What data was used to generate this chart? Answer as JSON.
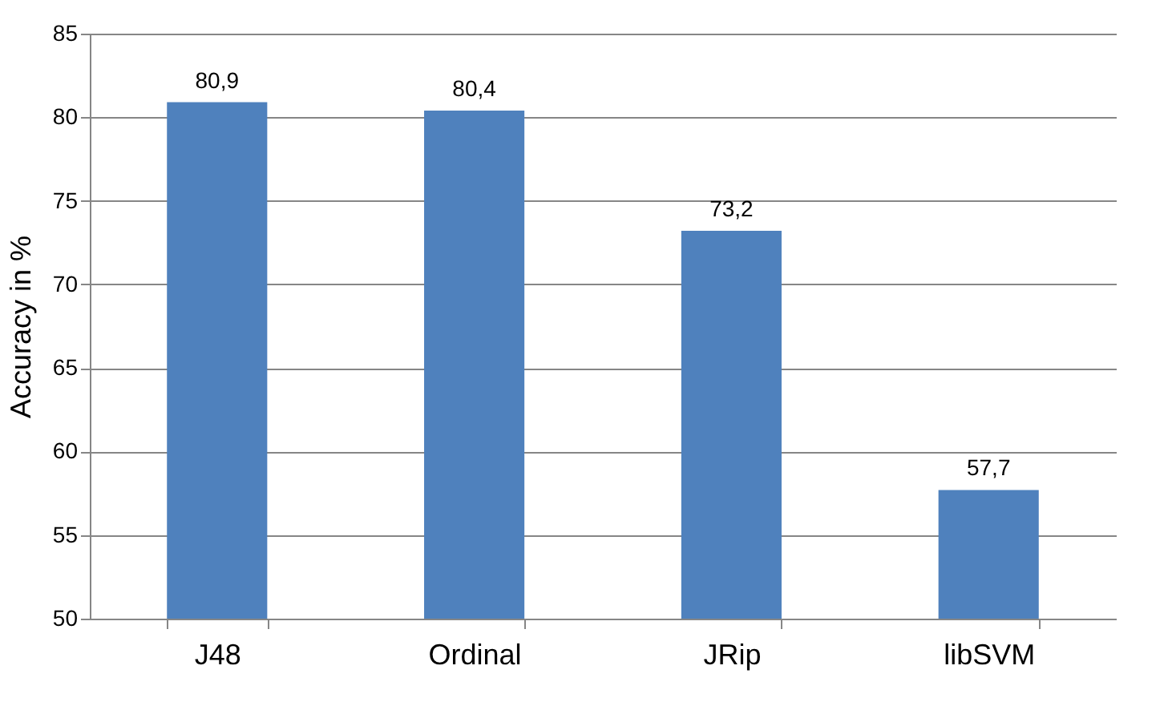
{
  "chart_data": {
    "type": "bar",
    "ylabel": "Accuracy in %",
    "categories": [
      "J48",
      "Ordinal",
      "JRip",
      "libSVM"
    ],
    "values": [
      80.9,
      80.4,
      73.2,
      57.7
    ],
    "value_labels": [
      "80,9",
      "80,4",
      "73,2",
      "57,7"
    ],
    "color": "#4f81bd",
    "ylim": [
      50,
      85
    ],
    "yticks": [
      50,
      55,
      60,
      65,
      70,
      75,
      80,
      85
    ],
    "grid": "y"
  }
}
